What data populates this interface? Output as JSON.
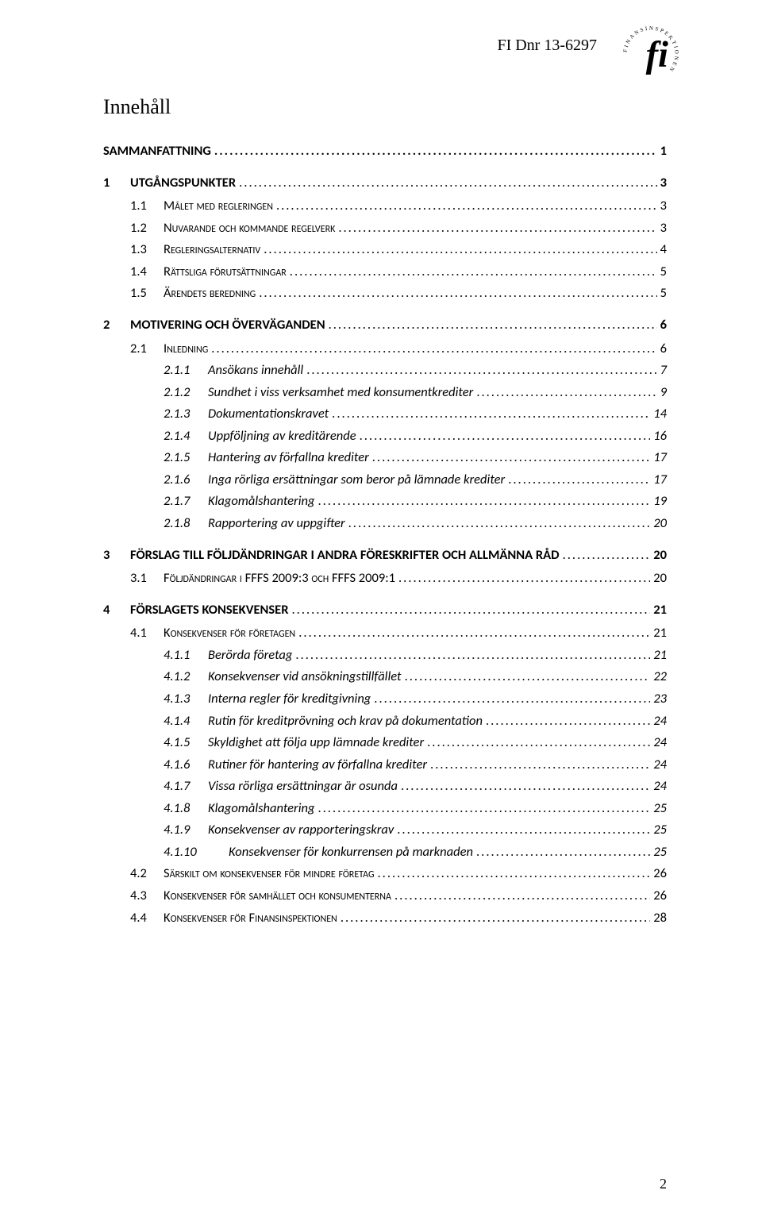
{
  "header": {
    "doc_ref": "FI Dnr 13-6297",
    "logo_outer_text": "FINANSINSPEKTIONEN"
  },
  "title": "Innehåll",
  "page_number": "2",
  "toc": [
    {
      "level": "top",
      "num": "",
      "label": "SAMMANFATTNING",
      "page": "1"
    },
    {
      "level": 0,
      "num": "1",
      "label": "UTGÅNGSPUNKTER",
      "page": "3"
    },
    {
      "level": 1,
      "num": "1.1",
      "label": "Målet med regleringen",
      "page": "3"
    },
    {
      "level": 1,
      "num": "1.2",
      "label": "Nuvarande och kommande regelverk",
      "page": "3"
    },
    {
      "level": 1,
      "num": "1.3",
      "label": "Regleringsalternativ",
      "page": "4"
    },
    {
      "level": 1,
      "num": "1.4",
      "label": "Rättsliga förutsättningar",
      "page": "5"
    },
    {
      "level": 1,
      "num": "1.5",
      "label": "Ärendets beredning",
      "page": "5"
    },
    {
      "level": 0,
      "num": "2",
      "label": "MOTIVERING OCH ÖVERVÄGANDEN",
      "page": "6"
    },
    {
      "level": 1,
      "num": "2.1",
      "label": "Inledning",
      "page": "6"
    },
    {
      "level": 2,
      "num": "2.1.1",
      "label": "Ansökans innehåll",
      "page": "7"
    },
    {
      "level": 2,
      "num": "2.1.2",
      "label": "Sundhet i viss verksamhet med konsumentkrediter",
      "page": "9"
    },
    {
      "level": 2,
      "num": "2.1.3",
      "label": "Dokumentationskravet",
      "page": "14"
    },
    {
      "level": 2,
      "num": "2.1.4",
      "label": "Uppföljning av kreditärende",
      "page": "16"
    },
    {
      "level": 2,
      "num": "2.1.5",
      "label": "Hantering av förfallna krediter",
      "page": "17"
    },
    {
      "level": 2,
      "num": "2.1.6",
      "label": "Inga rörliga ersättningar som beror på lämnade krediter",
      "page": "17"
    },
    {
      "level": 2,
      "num": "2.1.7",
      "label": "Klagomålshantering",
      "page": "19"
    },
    {
      "level": 2,
      "num": "2.1.8",
      "label": "Rapportering av uppgifter",
      "page": "20"
    },
    {
      "level": 0,
      "num": "3",
      "label": "FÖRSLAG TILL FÖLJDÄNDRINGAR I ANDRA FÖRESKRIFTER OCH ALLMÄNNA RÅD",
      "page": "20"
    },
    {
      "level": 1,
      "num": "3.1",
      "label": "Följdändringar i FFFS 2009:3 och FFFS 2009:1",
      "page": "20"
    },
    {
      "level": 0,
      "num": "4",
      "label": "FÖRSLAGETS KONSEKVENSER",
      "page": "21"
    },
    {
      "level": 1,
      "num": "4.1",
      "label": "Konsekvenser för företagen",
      "page": "21"
    },
    {
      "level": 2,
      "num": "4.1.1",
      "label": "Berörda företag",
      "page": "21"
    },
    {
      "level": 2,
      "num": "4.1.2",
      "label": "Konsekvenser vid ansökningstillfället",
      "page": "22"
    },
    {
      "level": 2,
      "num": "4.1.3",
      "label": "Interna regler för kreditgivning",
      "page": "23"
    },
    {
      "level": 2,
      "num": "4.1.4",
      "label": "Rutin för kreditprövning och krav på dokumentation",
      "page": "24"
    },
    {
      "level": 2,
      "num": "4.1.5",
      "label": "Skyldighet att följa upp lämnade krediter",
      "page": "24"
    },
    {
      "level": 2,
      "num": "4.1.6",
      "label": "Rutiner för hantering av förfallna krediter",
      "page": "24"
    },
    {
      "level": 2,
      "num": "4.1.7",
      "label": "Vissa rörliga ersättningar är osunda",
      "page": "24"
    },
    {
      "level": 2,
      "num": "4.1.8",
      "label": "Klagomålshantering",
      "page": "25"
    },
    {
      "level": 2,
      "num": "4.1.9",
      "label": "Konsekvenser av rapporteringskrav",
      "page": "25"
    },
    {
      "level": 3,
      "num": "4.1.10",
      "label": "Konsekvenser för konkurrensen på marknaden",
      "page": "25"
    },
    {
      "level": 1,
      "num": "4.2",
      "label": "Särskilt om konsekvenser för mindre företag",
      "page": "26"
    },
    {
      "level": 1,
      "num": "4.3",
      "label": "Konsekvenser för samhället och konsumenterna",
      "page": "26"
    },
    {
      "level": 1,
      "num": "4.4",
      "label": "Konsekvenser för Finansinspektionen",
      "page": "28"
    }
  ]
}
